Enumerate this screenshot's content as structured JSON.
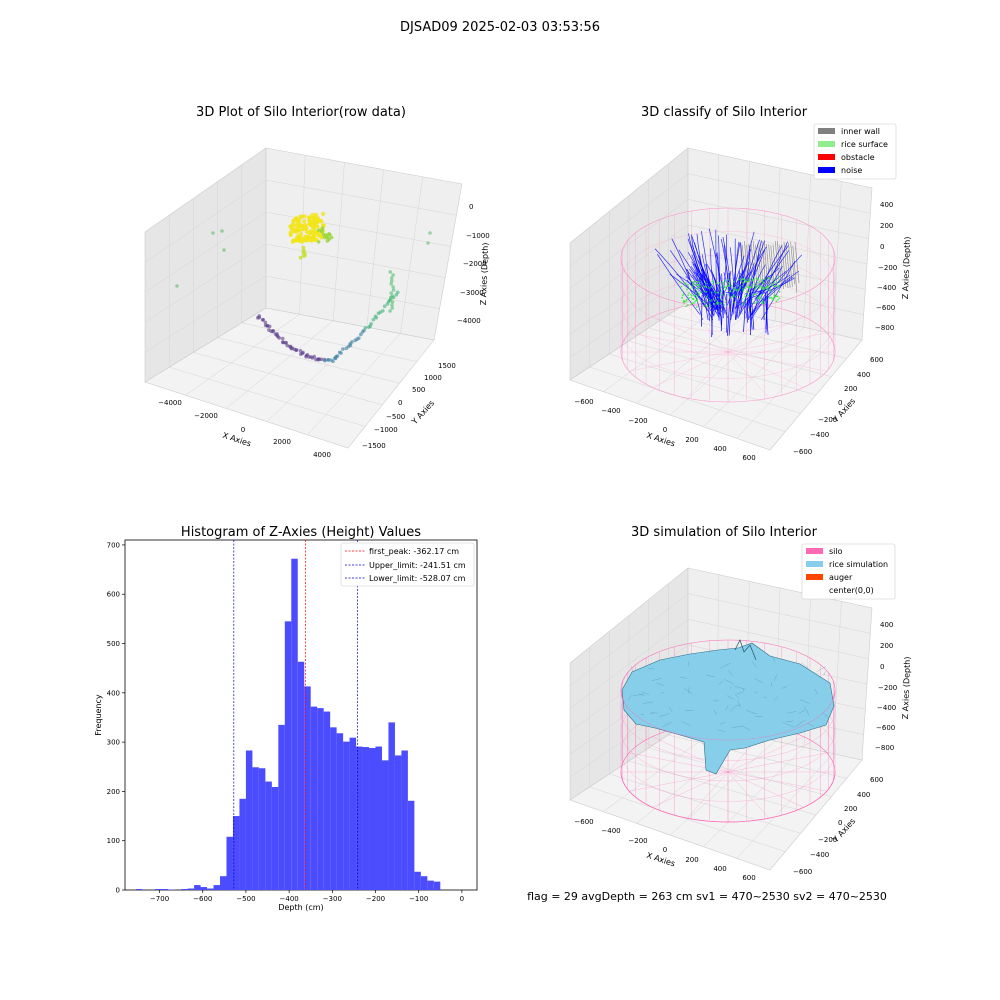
{
  "suptitle": "DJSAD09 2025-02-03 03:53:56",
  "status_line": "flag = 29  avgDepth = 263 cm  sv1 = 470~2530  sv2 = 470~2530",
  "colors": {
    "hist_bar": "#4c4cff",
    "first_peak": "#ff0000",
    "limit": "#0000cc",
    "inner_wall": "#808080",
    "rice_surface": "#90ee90",
    "obstacle": "#ff0000",
    "noise": "#0000ff",
    "silo": "#ff69b4",
    "rice_simulation": "#87ceeb",
    "auger": "#ff4500"
  },
  "plot1": {
    "title": "3D Plot of Silo Interior(row data)",
    "xlabel": "X Axies",
    "ylabel": "Y Axies",
    "zlabel": "Z Axies (Depth)",
    "xticks": [
      "−4000",
      "−2000",
      "0",
      "2000",
      "4000"
    ],
    "yticks": [
      "−1500",
      "−1000",
      "−500",
      "0",
      "500",
      "1000",
      "1500"
    ],
    "zticks": [
      "0",
      "−1000",
      "−2000",
      "−3000",
      "−4000"
    ]
  },
  "plot2": {
    "title": "3D classify of Silo Interior",
    "xlabel": "X Axies",
    "ylabel": "Y Axies",
    "zlabel": "Z Axies (Depth)",
    "xticks": [
      "−600",
      "−400",
      "−200",
      "0",
      "200",
      "400",
      "600"
    ],
    "yticks": [
      "−600",
      "−400",
      "−200",
      "0",
      "200",
      "400",
      "600"
    ],
    "zticks": [
      "400",
      "200",
      "0",
      "−200",
      "−400",
      "−600",
      "−800"
    ],
    "legend": [
      "inner wall",
      "rice surface",
      "obstacle",
      "noise"
    ]
  },
  "plot4": {
    "title": "3D simulation of Silo Interior",
    "xlabel": "X Axies",
    "ylabel": "Y Axies",
    "zlabel": "Z Axies (Depth)",
    "xticks": [
      "−600",
      "−400",
      "−200",
      "0",
      "200",
      "400",
      "600"
    ],
    "yticks": [
      "−600",
      "−400",
      "−200",
      "0",
      "200",
      "400",
      "600"
    ],
    "zticks": [
      "400",
      "200",
      "0",
      "−200",
      "−400",
      "−600",
      "−800"
    ],
    "legend": [
      "silo",
      "rice simulation",
      "auger",
      "center(0,0)"
    ]
  },
  "chart_data": [
    {
      "type": "bar",
      "title": "Histogram of Z-Axies (Height) Values",
      "xlabel": "Depth (cm)",
      "ylabel": "Frequency",
      "xlim": [
        -780,
        35
      ],
      "ylim": [
        0,
        710
      ],
      "xticks": [
        -700,
        -600,
        -500,
        -400,
        -300,
        -200,
        -100,
        0
      ],
      "yticks": [
        0,
        100,
        200,
        300,
        400,
        500,
        600,
        700
      ],
      "bin_start": -770,
      "bin_width": 15,
      "values": [
        0,
        2,
        0,
        0,
        2,
        2,
        1,
        0,
        2,
        3,
        10,
        6,
        3,
        10,
        28,
        108,
        150,
        185,
        283,
        249,
        247,
        220,
        209,
        335,
        545,
        672,
        463,
        413,
        372,
        369,
        362,
        330,
        318,
        301,
        309,
        291,
        290,
        288,
        291,
        263,
        340,
        273,
        283,
        181,
        37,
        28,
        19,
        17
      ],
      "vlines": [
        {
          "label": "first_peak: -362.17 cm",
          "x": -362.17,
          "color": "#ff0000"
        },
        {
          "label": "Upper_limit: -241.51 cm",
          "x": -241.51,
          "color": "#0000cc"
        },
        {
          "label": "Lower_limit: -528.07 cm",
          "x": -528.07,
          "color": "#0000cc"
        }
      ],
      "legend_position": "upper right",
      "grid": false
    }
  ]
}
